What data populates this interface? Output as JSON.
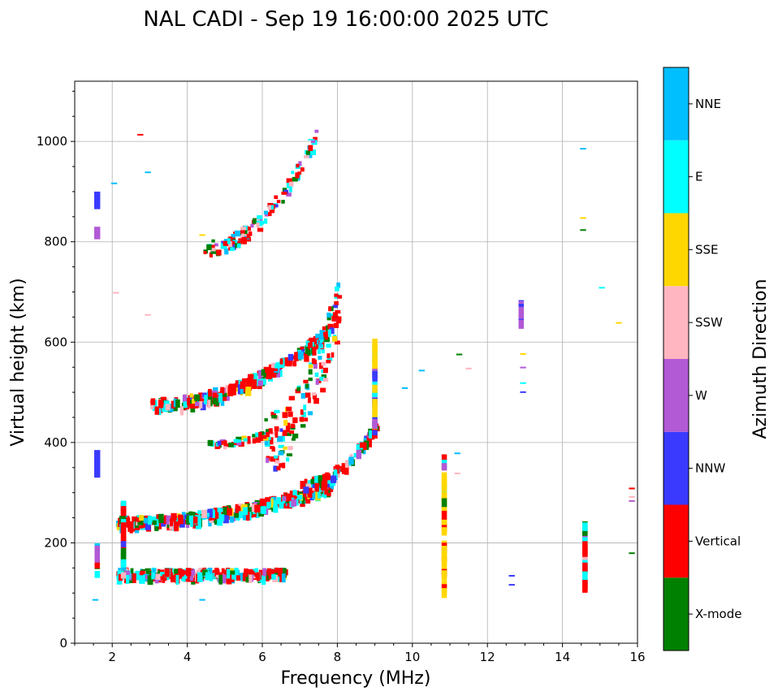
{
  "chart_data": {
    "type": "scatter",
    "title": "NAL CADI - Sep 19 16:00:00 2025 UTC",
    "xlabel": "Frequency (MHz)",
    "ylabel": "Virtual height (km)",
    "xlim": [
      1,
      16
    ],
    "ylim": [
      0,
      1120
    ],
    "xticks": [
      2,
      4,
      6,
      8,
      10,
      12,
      14,
      16
    ],
    "yticks": [
      0,
      200,
      400,
      600,
      800,
      1000
    ],
    "grid": true,
    "colorbar": {
      "label": "Azimuth Direction",
      "categories": [
        "X-mode",
        "Vertical",
        "NNW",
        "W",
        "SSW",
        "SSE",
        "E",
        "NNE"
      ],
      "colors": [
        "#008000",
        "#ff0000",
        "#3a3aff",
        "#b259d6",
        "#ffb6c1",
        "#ffd700",
        "#00ffff",
        "#00bfff"
      ]
    },
    "traces": [
      {
        "name": "E-layer low echoes",
        "f0": 2.1,
        "f1": 6.6,
        "h": 143,
        "curve": 0,
        "scatter": 8,
        "n": 260,
        "thick": 2
      },
      {
        "name": "F-layer 1st hop",
        "f0": 2.1,
        "f1": 7.8,
        "h": 245,
        "curve": 75,
        "scatter": 10,
        "n": 330,
        "thick": 3
      },
      {
        "name": "F-layer 1st hop cusp",
        "f0": 7.0,
        "f1": 9.0,
        "h": 320,
        "curve": 120,
        "scatter": 10,
        "n": 90,
        "thick": 2
      },
      {
        "name": "E 2nd hop",
        "f0": 4.5,
        "f1": 6.0,
        "h": 400,
        "curve": 20,
        "scatter": 6,
        "n": 40,
        "thick": 1
      },
      {
        "name": "F 2nd hop",
        "f0": 3.0,
        "f1": 7.8,
        "h": 480,
        "curve": 150,
        "scatter": 12,
        "n": 230,
        "thick": 2
      },
      {
        "name": "F 2nd hop scatter",
        "f0": 6.0,
        "f1": 8.0,
        "h": 400,
        "curve": 280,
        "scatter": 60,
        "n": 140,
        "thick": 1
      },
      {
        "name": "F 3rd hop",
        "f0": 4.4,
        "f1": 7.4,
        "h": 790,
        "curve": 220,
        "scatter": 15,
        "n": 110,
        "thick": 1
      }
    ],
    "columns": [
      {
        "name": "2.3 MHz column",
        "f": 2.3,
        "h0": 140,
        "h1": 290,
        "n": 40
      },
      {
        "name": "1.6 MHz column",
        "f": 1.6,
        "h0": 140,
        "h1": 200,
        "n": 12
      },
      {
        "name": "9 MHz column",
        "f": 9.0,
        "h0": 420,
        "h1": 610,
        "n": 40
      },
      {
        "name": "10.9 MHz column",
        "f": 10.85,
        "h0": 105,
        "h1": 390,
        "n": 40
      },
      {
        "name": "12.9 MHz column",
        "f": 12.9,
        "h0": 640,
        "h1": 690,
        "n": 14
      },
      {
        "name": "14.6 MHz column",
        "f": 14.6,
        "h0": 110,
        "h1": 245,
        "n": 45
      }
    ],
    "isolated_echoes": [
      {
        "f": 1.6,
        "h0": 865,
        "h1": 900,
        "c": 2
      },
      {
        "f": 1.6,
        "h0": 805,
        "h1": 830,
        "c": 3
      },
      {
        "f": 1.6,
        "h0": 330,
        "h1": 385,
        "c": 2
      },
      {
        "f": 14.55,
        "h0": 987,
        "h1": 987,
        "c": 7
      },
      {
        "f": 14.55,
        "h0": 849,
        "h1": 849,
        "c": 5
      },
      {
        "f": 14.55,
        "h0": 825,
        "h1": 825,
        "c": 0
      },
      {
        "f": 15.05,
        "h0": 710,
        "h1": 710,
        "c": 6
      },
      {
        "f": 15.5,
        "h0": 640,
        "h1": 640,
        "c": 5
      },
      {
        "f": 15.85,
        "h0": 310,
        "h1": 310,
        "c": 1
      },
      {
        "f": 15.85,
        "h0": 293,
        "h1": 293,
        "c": 4
      },
      {
        "f": 15.85,
        "h0": 285,
        "h1": 285,
        "c": 3
      },
      {
        "f": 15.85,
        "h0": 181,
        "h1": 181,
        "c": 0
      },
      {
        "f": 12.65,
        "h0": 136,
        "h1": 136,
        "c": 2
      },
      {
        "f": 12.65,
        "h0": 118,
        "h1": 118,
        "c": 2
      },
      {
        "f": 12.95,
        "h0": 578,
        "h1": 578,
        "c": 5
      },
      {
        "f": 12.95,
        "h0": 551,
        "h1": 551,
        "c": 3
      },
      {
        "f": 12.95,
        "h0": 520,
        "h1": 520,
        "c": 6
      },
      {
        "f": 12.95,
        "h0": 502,
        "h1": 502,
        "c": 2
      },
      {
        "f": 10.25,
        "h0": 545,
        "h1": 545,
        "c": 7
      },
      {
        "f": 11.25,
        "h0": 577,
        "h1": 577,
        "c": 0
      },
      {
        "f": 11.5,
        "h0": 549,
        "h1": 549,
        "c": 4
      },
      {
        "f": 9.8,
        "h0": 510,
        "h1": 510,
        "c": 7
      },
      {
        "f": 11.2,
        "h0": 380,
        "h1": 380,
        "c": 7
      },
      {
        "f": 11.2,
        "h0": 340,
        "h1": 340,
        "c": 4
      },
      {
        "f": 2.05,
        "h0": 918,
        "h1": 918,
        "c": 7
      },
      {
        "f": 2.75,
        "h0": 1015,
        "h1": 1015,
        "c": 1
      },
      {
        "f": 2.95,
        "h0": 940,
        "h1": 940,
        "c": 7
      },
      {
        "f": 2.1,
        "h0": 700,
        "h1": 700,
        "c": 4
      },
      {
        "f": 2.95,
        "h0": 656,
        "h1": 656,
        "c": 4
      },
      {
        "f": 1.55,
        "h0": 88,
        "h1": 88,
        "c": 7
      },
      {
        "f": 4.4,
        "h0": 88,
        "h1": 88,
        "c": 7
      },
      {
        "f": 4.4,
        "h0": 815,
        "h1": 815,
        "c": 5
      },
      {
        "f": 7.3,
        "h0": 1005,
        "h1": 1005,
        "c": 6
      }
    ]
  }
}
